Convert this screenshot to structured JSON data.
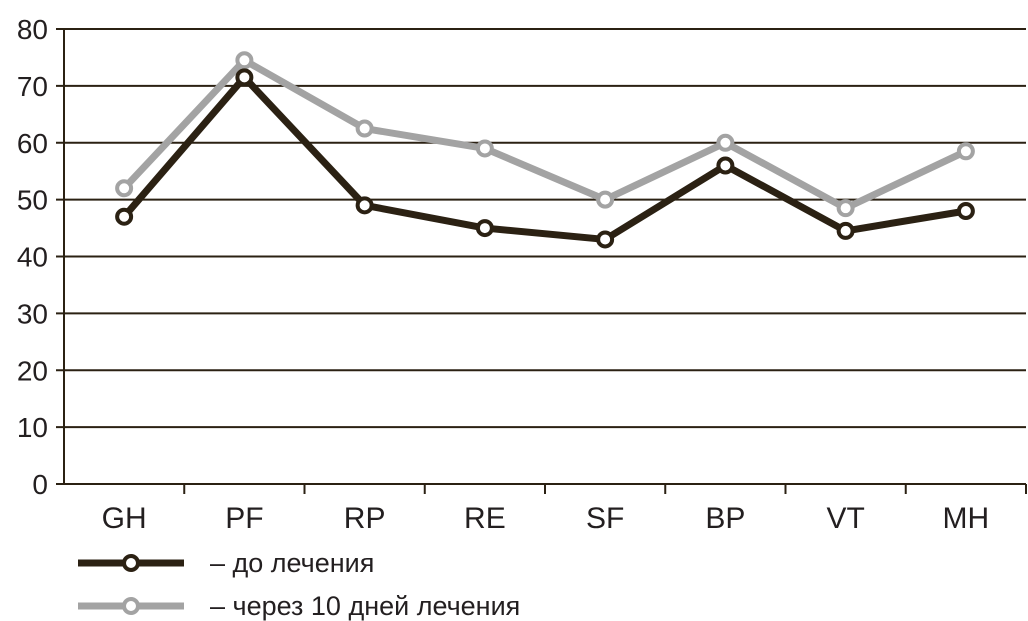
{
  "chart_data": {
    "type": "line",
    "categories": [
      "GH",
      "PF",
      "RP",
      "RE",
      "SF",
      "BP",
      "VT",
      "MH"
    ],
    "series": [
      {
        "name": "– до лечения",
        "values": [
          47,
          71.5,
          49,
          45,
          43,
          56,
          44.5,
          48
        ],
        "color": "#2b2113"
      },
      {
        "name": "– через 10 дней лечения",
        "values": [
          52,
          74.5,
          62.5,
          59,
          50,
          60,
          48.5,
          58.5
        ],
        "color": "#a3a3a3"
      }
    ],
    "ylim": [
      0,
      80
    ],
    "yticks": [
      0,
      10,
      20,
      30,
      40,
      50,
      60,
      70,
      80
    ],
    "grid": true,
    "legend": "bottom-left",
    "axis_color": "#2b2113"
  }
}
